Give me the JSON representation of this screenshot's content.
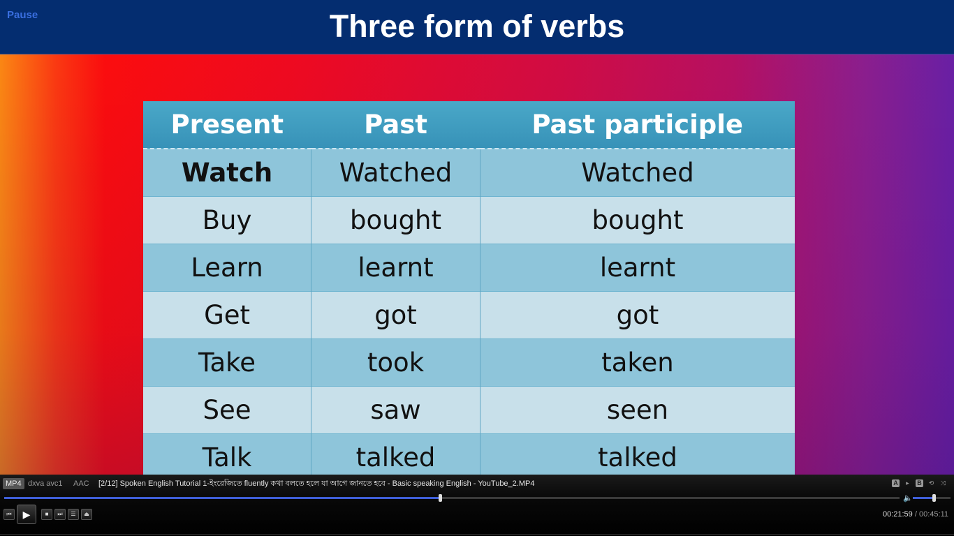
{
  "player": {
    "pause_label": "Pause",
    "format_tag": "MP4",
    "codec_tag": "dxva avc1",
    "audio_tag": "AAC",
    "file_title": "[2/12] Spoken English Tutorial 1-ইংরেজিতে fluently কথা বলতে হলে যা আগে জানতে হবে - Basic speaking English - YouTube_2.MP4",
    "ab_a": "A",
    "ab_b": "B",
    "current_time": "00:21:59",
    "separator": "/",
    "total_time": "00:45:11",
    "progress_fraction": 0.4866,
    "volume_fraction": 0.55
  },
  "slide": {
    "title": "Three form of verbs",
    "headers": [
      "Present",
      "Past",
      "Past participle"
    ],
    "rows": [
      [
        "Watch",
        "Watched",
        "Watched"
      ],
      [
        "Buy",
        "bought",
        "bought"
      ],
      [
        "Learn",
        "learnt",
        "learnt"
      ],
      [
        "Get",
        "got",
        "got"
      ],
      [
        "Take",
        "took",
        "taken"
      ],
      [
        "See",
        "saw",
        "seen"
      ],
      [
        "Talk",
        "talked",
        "talked"
      ]
    ]
  },
  "colors": {
    "accent": "#3f5fd8",
    "title_bar": "#042d70"
  }
}
